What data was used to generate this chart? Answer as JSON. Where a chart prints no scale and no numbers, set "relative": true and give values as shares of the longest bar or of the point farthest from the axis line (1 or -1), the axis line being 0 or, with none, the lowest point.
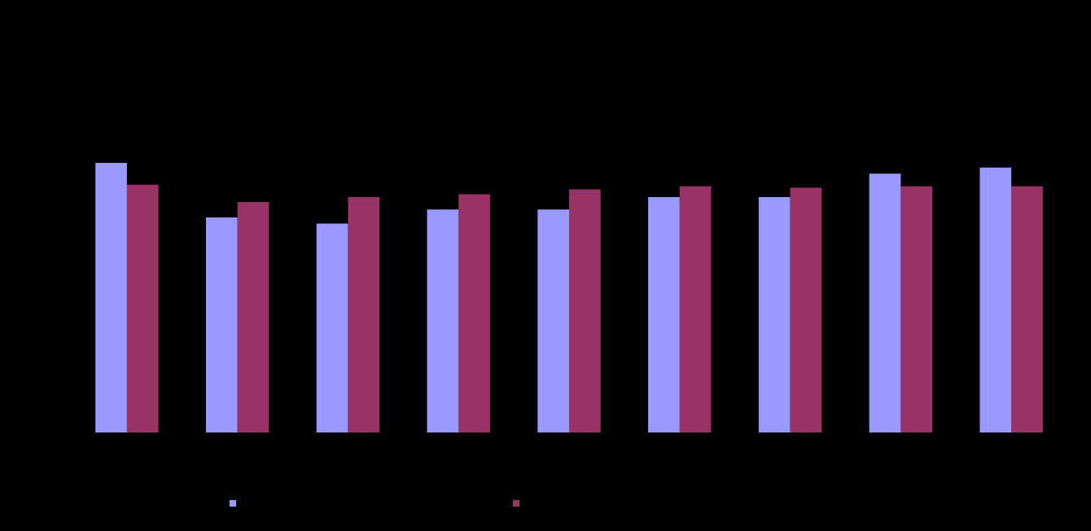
{
  "chart_data": {
    "type": "bar",
    "relative": true,
    "categories": [
      null,
      null,
      null,
      null,
      null,
      null,
      null,
      null,
      null
    ],
    "series": [
      {
        "color": "#9999ff",
        "values": [
          1,
          0.798,
          0.775,
          0.827,
          0.827,
          0.873,
          0.873,
          0.96,
          0.983
        ]
      },
      {
        "color": "#993366",
        "values": [
          0.919,
          0.855,
          0.873,
          0.884,
          0.902,
          0.913,
          0.908,
          0.913,
          0.913
        ]
      }
    ]
  }
}
